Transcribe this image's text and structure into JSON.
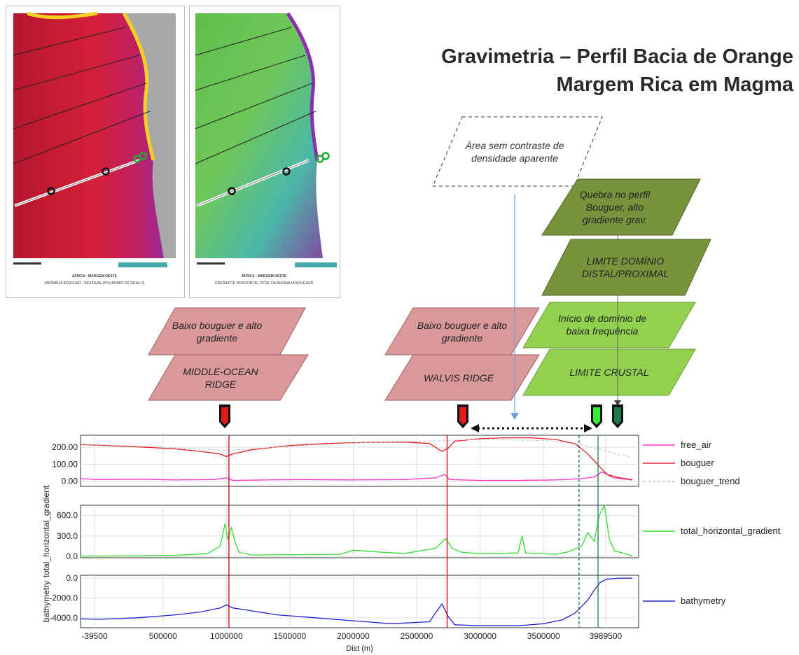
{
  "title": {
    "line1": "Gravimetria – Perfil Bacia de Orange",
    "line2": "Margem Rica em Magma"
  },
  "maps": {
    "left": {
      "caption": "ÁFRICA - MARGEM OESTE",
      "subcaption": "ANOMALIA BOUGUER - RESIDUAL (POLINÔMIO DE GRAU 3)"
    },
    "right": {
      "caption": "ÁFRICA - MARGEM OESTE",
      "subcaption": "GRADIENTE HORIZONTAL TOTAL DA ANOMALIA BOUGUER"
    }
  },
  "annotations": {
    "area_sem_contraste": "Área sem contraste de densidade aparente",
    "quebra_perfil": "Quebra no perfil Bouguer, alto gradiente grav.",
    "limite_dominio": "LIMITE DOMÍNIO DISTAL/PROXIMAL",
    "inicio_dominio": "Início de domínio de baixa frequência",
    "limite_crustal": "LIMITE CRUSTAL",
    "baixo_bouguer_1": "Baixo bouguer e alto gradiente",
    "middle_ocean": "MIDDLE-OCEAN RIDGE",
    "baixo_bouguer_2": "Baixo bouguer e alto gradiente",
    "walvis": "WALVIS RIDGE"
  },
  "colors": {
    "pink_box": "#d9999a",
    "dark_green_box": "#77933c",
    "light_green_box": "#92d050",
    "free_air": "#ff33cc",
    "bouguer": "#e02020",
    "bouguer_trend": "#c0c0c0",
    "thg": "#33dd33",
    "bathymetry": "#2222cc"
  },
  "chart_data": {
    "type": "line",
    "xlabel": "Dist (m)",
    "x_ticks": [
      "-39500",
      "500000",
      "1000000",
      "1500000",
      "2000000",
      "2500000",
      "3000000",
      "3500000",
      "3989500"
    ],
    "x_tick_values": [
      -39500,
      500000,
      1000000,
      1500000,
      2000000,
      2500000,
      3000000,
      3500000,
      3989500
    ],
    "xlim": [
      -150000,
      4250000
    ],
    "panels": [
      {
        "ylabel": "",
        "y_ticks": [
          "200.00",
          "100.00",
          "0.00"
        ],
        "y_tick_values": [
          200,
          100,
          0
        ],
        "ylim": [
          -30,
          270
        ],
        "series": [
          {
            "name": "free_air",
            "color": "#ff33cc",
            "x": [
              -150000,
              0,
              300000,
              600000,
              900000,
              1000000,
              1050000,
              1300000,
              1600000,
              2000000,
              2400000,
              2650000,
              2720000,
              2760000,
              3000000,
              3300000,
              3600000,
              3800000,
              3900000,
              3960000,
              4050000,
              4200000
            ],
            "y": [
              15,
              10,
              12,
              8,
              10,
              20,
              5,
              8,
              10,
              8,
              10,
              20,
              40,
              10,
              5,
              5,
              8,
              15,
              25,
              55,
              20,
              8
            ]
          },
          {
            "name": "bouguer",
            "color": "#e02020",
            "x": [
              -150000,
              0,
              200000,
              400000,
              600000,
              800000,
              950000,
              1000000,
              1050000,
              1200000,
              1500000,
              1800000,
              2100000,
              2400000,
              2600000,
              2700000,
              2750000,
              2800000,
              3000000,
              3200000,
              3400000,
              3600000,
              3750000,
              3850000,
              3950000,
              4000000,
              4100000,
              4200000
            ],
            "y": [
              215,
              212,
              205,
              198,
              190,
              175,
              160,
              145,
              160,
              185,
              210,
              222,
              228,
              230,
              222,
              175,
              195,
              235,
              250,
              255,
              255,
              245,
              220,
              160,
              80,
              40,
              20,
              10
            ]
          },
          {
            "name": "bouguer_trend",
            "color": "#c0c0c0",
            "x": [
              -150000,
              500000,
              1000000,
              1500000,
              2000000,
              2500000,
              3000000,
              3500000,
              3800000,
              4000000,
              4200000
            ],
            "y": [
              218,
              200,
              180,
              205,
              225,
              235,
              245,
              240,
              215,
              175,
              140
            ]
          }
        ]
      },
      {
        "ylabel": "total_horizontal_gradient",
        "y_ticks": [
          "600.0",
          "300.0",
          "0.0"
        ],
        "y_tick_values": [
          600,
          300,
          0
        ],
        "ylim": [
          -20,
          750
        ],
        "series": [
          {
            "name": "total_horizontal_gradient",
            "color": "#33dd33",
            "x": [
              -150000,
              0,
              300000,
              600000,
              850000,
              950000,
              990000,
              1010000,
              1040000,
              1070000,
              1100000,
              1200000,
              1500000,
              1900000,
              2000000,
              2400000,
              2650000,
              2730000,
              2780000,
              2850000,
              3000000,
              3300000,
              3330000,
              3360000,
              3600000,
              3700000,
              3800000,
              3850000,
              3900000,
              3940000,
              3980000,
              4020000,
              4060000,
              4200000
            ],
            "y": [
              5,
              5,
              10,
              15,
              40,
              150,
              480,
              250,
              420,
              200,
              60,
              20,
              25,
              30,
              90,
              40,
              120,
              260,
              120,
              60,
              40,
              50,
              300,
              50,
              30,
              70,
              150,
              350,
              220,
              600,
              750,
              250,
              80,
              10
            ]
          }
        ]
      },
      {
        "ylabel": "bathymetry",
        "y_ticks": [
          "0.0",
          "-2000.0",
          "-4000.0"
        ],
        "y_tick_values": [
          0,
          -2000,
          -4000
        ],
        "ylim": [
          -5000,
          300
        ],
        "series": [
          {
            "name": "bathymetry",
            "color": "#2222cc",
            "x": [
              -150000,
              0,
              300000,
              600000,
              800000,
              950000,
              1000000,
              1050000,
              1200000,
              1400000,
              1700000,
              2000000,
              2300000,
              2600000,
              2700000,
              2750000,
              2800000,
              3000000,
              3300000,
              3500000,
              3650000,
              3750000,
              3850000,
              3900000,
              3950000,
              4000000,
              4100000,
              4200000
            ],
            "y": [
              -4100,
              -4150,
              -4000,
              -3700,
              -3400,
              -3000,
              -2700,
              -3000,
              -3300,
              -3700,
              -4000,
              -4300,
              -4600,
              -4400,
              -2600,
              -3900,
              -4700,
              -4800,
              -4800,
              -4600,
              -4200,
              -3500,
              -2200,
              -1200,
              -400,
              -100,
              0,
              0
            ]
          }
        ]
      }
    ],
    "vertical_markers": [
      {
        "x": 1020000,
        "color": "#cc0000",
        "style": "solid"
      },
      {
        "x": 2740000,
        "color": "#cc0000",
        "style": "solid"
      },
      {
        "x": 3780000,
        "color": "#1a6b4a",
        "style": "dashed"
      },
      {
        "x": 3930000,
        "color": "#1a8050",
        "style": "solid"
      }
    ],
    "legend": [
      "free_air",
      "bouguer",
      "bouguer_trend",
      "total_horizontal_gradient",
      "bathymetry"
    ]
  }
}
